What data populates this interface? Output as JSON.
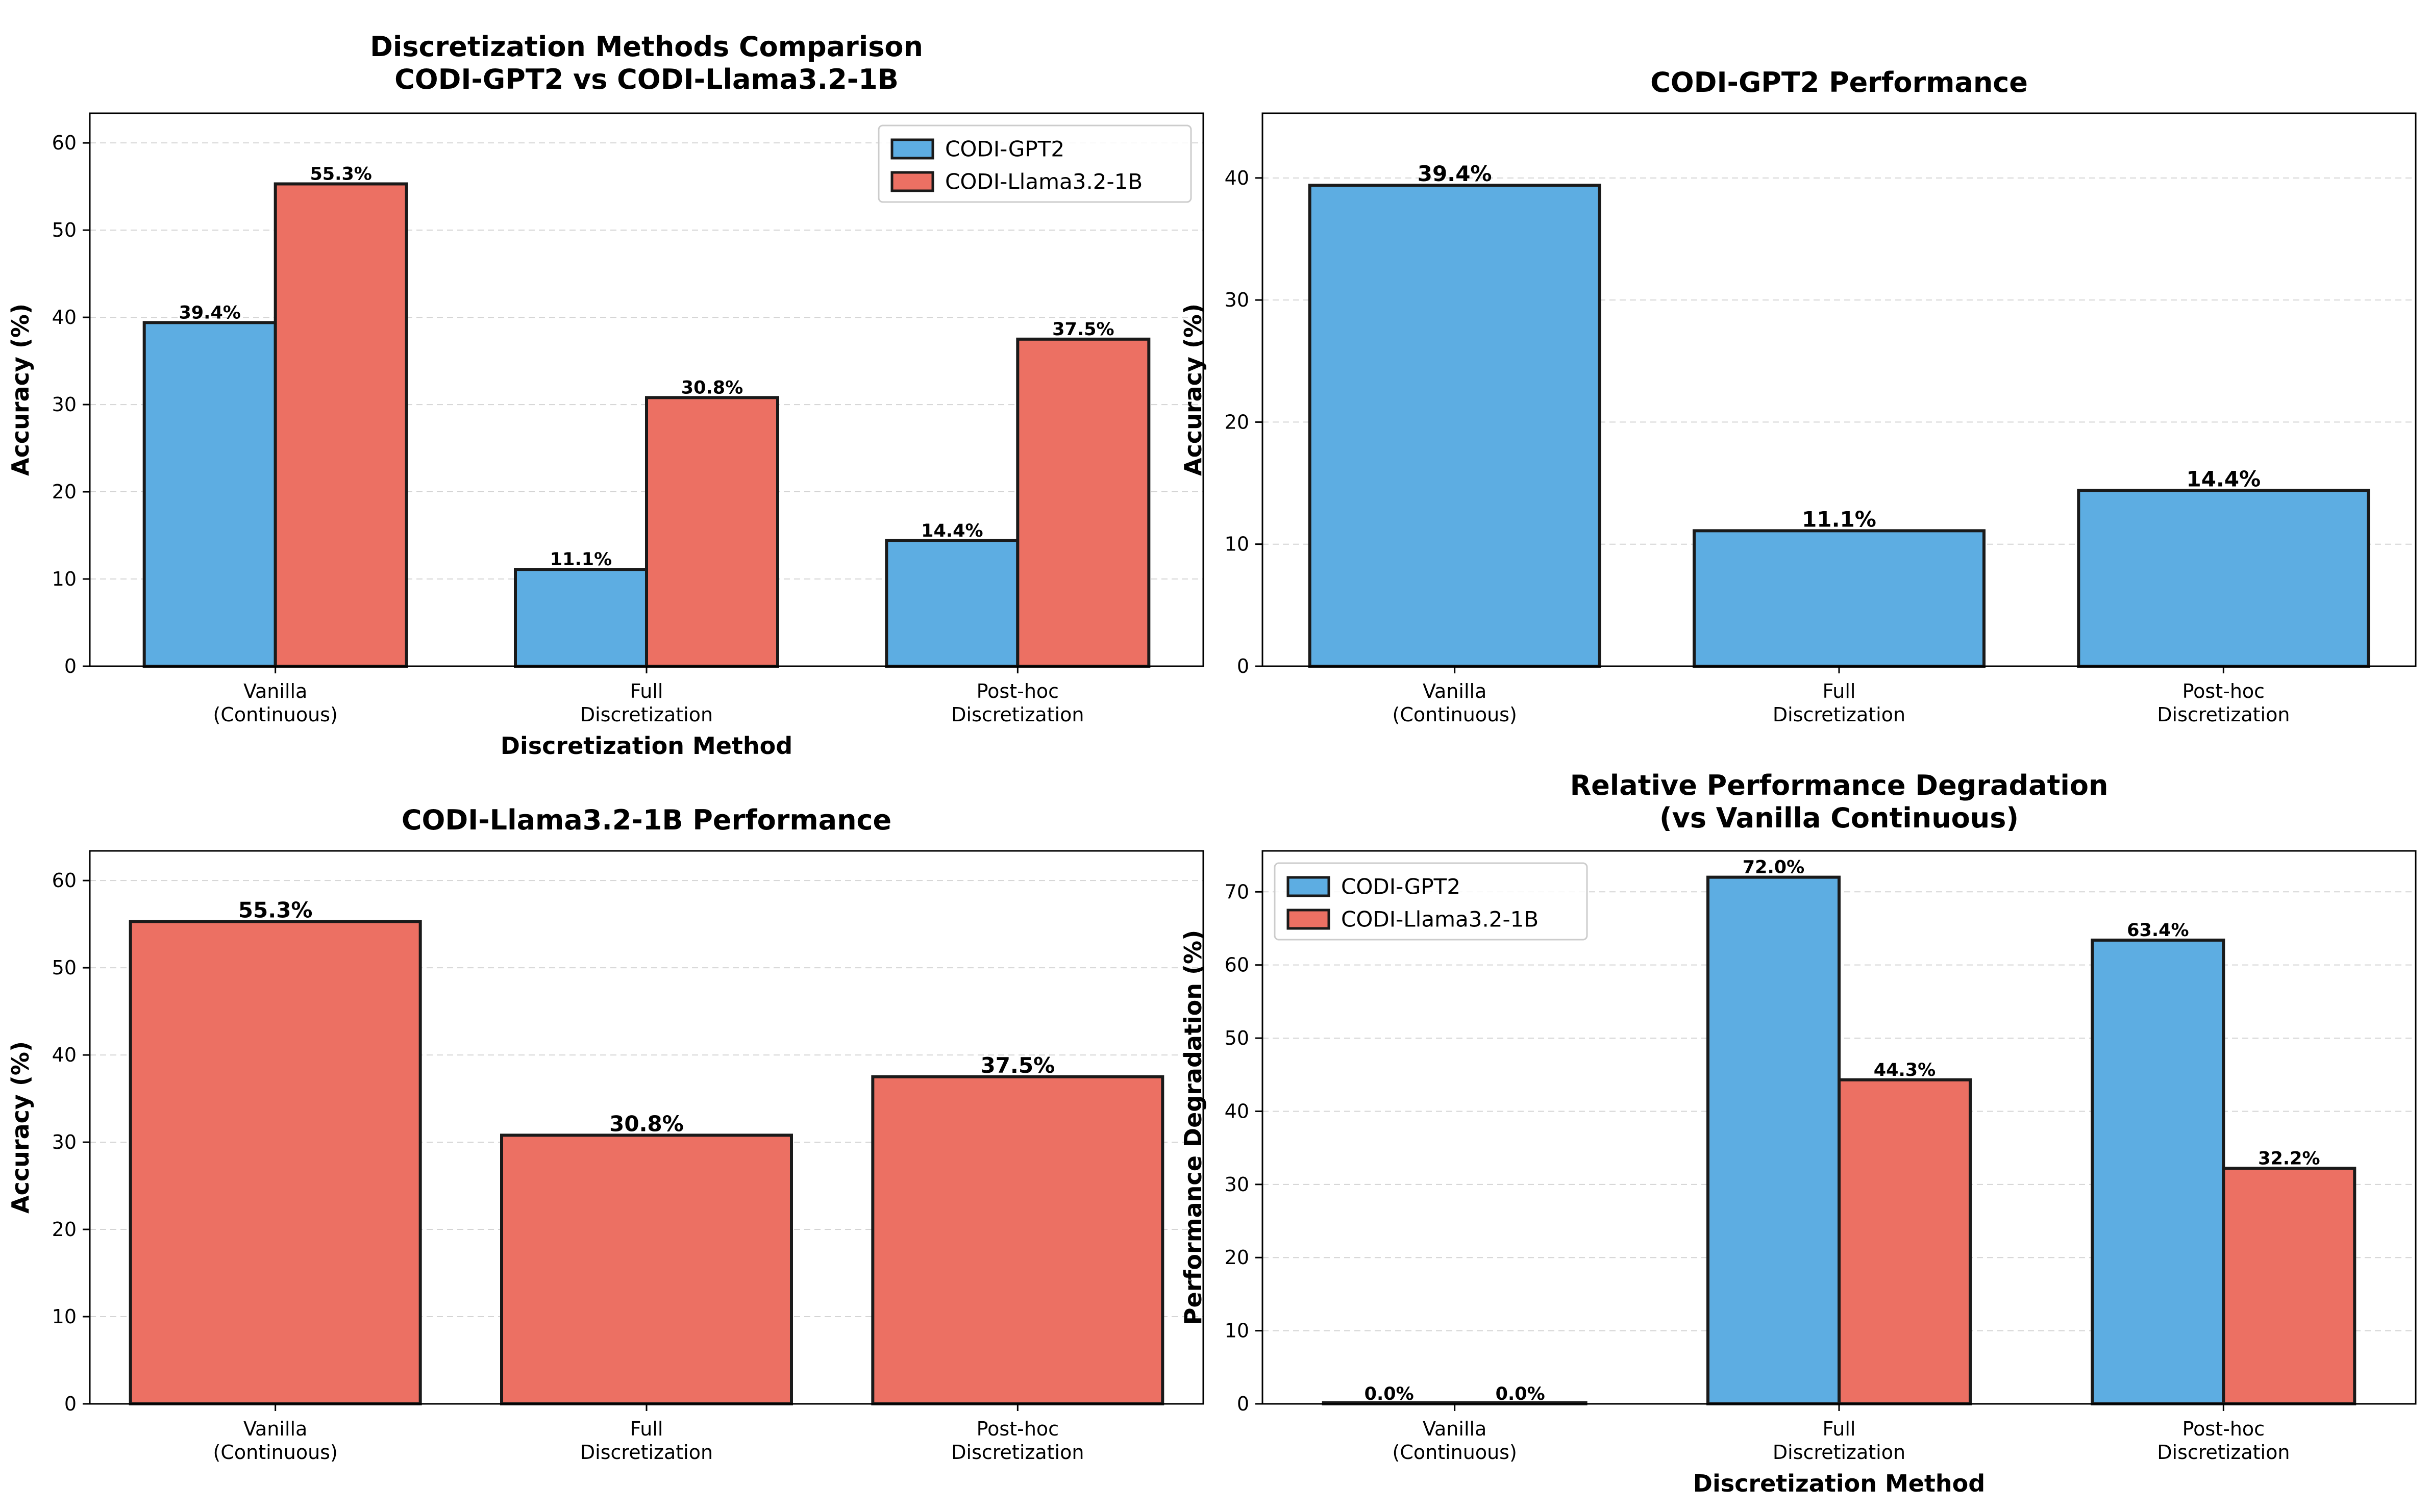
{
  "chart_data": [
    {
      "type": "bar",
      "title": "Discretization Methods Comparison\nCODI-GPT2 vs CODI-Llama3.2-1B",
      "xlabel": "Discretization Method",
      "ylabel": "Accuracy (%)",
      "categories": [
        "Vanilla\n(Continuous)",
        "Full\nDiscretization",
        "Post-hoc\nDiscretization"
      ],
      "series": [
        {
          "name": "CODI-GPT2",
          "values": [
            39.4,
            11.1,
            14.4
          ],
          "color": "#5DADE2"
        },
        {
          "name": "CODI-Llama3.2-1B",
          "values": [
            55.3,
            30.8,
            37.5
          ],
          "color": "#EC7063"
        }
      ],
      "data_labels": [
        [
          "39.4%",
          "11.1%",
          "14.4%"
        ],
        [
          "55.3%",
          "30.8%",
          "37.5%"
        ]
      ],
      "ylim": [
        0,
        63.4
      ],
      "yticks": [
        0,
        10,
        20,
        30,
        40,
        50,
        60
      ],
      "grid": true,
      "legend": "top-right"
    },
    {
      "type": "bar",
      "title": "CODI-GPT2 Performance",
      "xlabel": "",
      "ylabel": "Accuracy (%)",
      "categories": [
        "Vanilla\n(Continuous)",
        "Full\nDiscretization",
        "Post-hoc\nDiscretization"
      ],
      "series": [
        {
          "name": "",
          "values": [
            39.4,
            11.1,
            14.4
          ],
          "color": "#5DADE2"
        }
      ],
      "data_labels": [
        [
          "39.4%",
          "11.1%",
          "14.4%"
        ]
      ],
      "ylim": [
        0,
        45.3
      ],
      "yticks": [
        0,
        10,
        20,
        30,
        40
      ],
      "grid": true,
      "legend": "none"
    },
    {
      "type": "bar",
      "title": "CODI-Llama3.2-1B Performance",
      "xlabel": "",
      "ylabel": "Accuracy (%)",
      "categories": [
        "Vanilla\n(Continuous)",
        "Full\nDiscretization",
        "Post-hoc\nDiscretization"
      ],
      "series": [
        {
          "name": "",
          "values": [
            55.3,
            30.8,
            37.5
          ],
          "color": "#EC7063"
        }
      ],
      "data_labels": [
        [
          "55.3%",
          "30.8%",
          "37.5%"
        ]
      ],
      "ylim": [
        0,
        63.4
      ],
      "yticks": [
        0,
        10,
        20,
        30,
        40,
        50,
        60
      ],
      "grid": true,
      "legend": "none"
    },
    {
      "type": "bar",
      "title": "Relative Performance Degradation\n(vs Vanilla Continuous)",
      "xlabel": "Discretization Method",
      "ylabel": "Performance Degradation (%)",
      "categories": [
        "Vanilla\n(Continuous)",
        "Full\nDiscretization",
        "Post-hoc\nDiscretization"
      ],
      "series": [
        {
          "name": "CODI-GPT2",
          "values": [
            0.0,
            72.0,
            63.4
          ],
          "color": "#5DADE2"
        },
        {
          "name": "CODI-Llama3.2-1B",
          "values": [
            0.0,
            44.3,
            32.2
          ],
          "color": "#EC7063"
        }
      ],
      "data_labels": [
        [
          "0.0%",
          "72.0%",
          "63.4%"
        ],
        [
          "0.0%",
          "44.3%",
          "32.2%"
        ]
      ],
      "ylim": [
        0,
        75.6
      ],
      "yticks": [
        0,
        10,
        20,
        30,
        40,
        50,
        60,
        70
      ],
      "grid": true,
      "legend": "top-left"
    }
  ]
}
